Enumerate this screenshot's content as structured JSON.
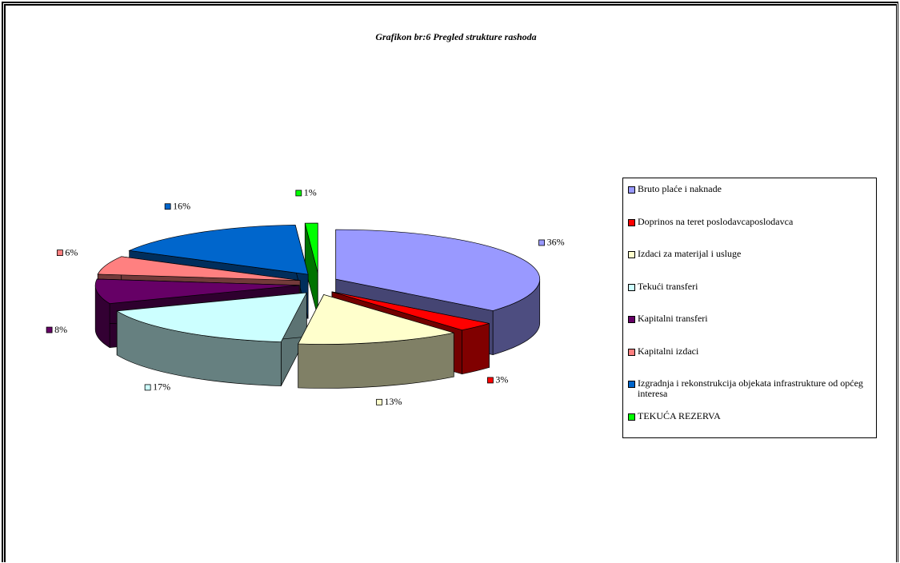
{
  "chart_data": {
    "type": "pie3d",
    "title": "Grafikon br:6 Pregled strukture rashoda",
    "categories": [
      "Bruto plaće i naknade",
      "Doprinos  na teret poslodavcaposlodavca",
      "Izdaci za materijal i usluge",
      "Tekući transferi",
      "Kapitalni transferi",
      "Kapitalni  izdaci",
      "Izgradnja i rekonstrukcija objekata infrastrukture od općeg interesa",
      "TEKUĆA REZERVA"
    ],
    "values": [
      36,
      3,
      13,
      17,
      8,
      6,
      16,
      1
    ],
    "value_labels": [
      "36%",
      "3%",
      "13%",
      "17%",
      "8%",
      "6%",
      "16%",
      "1%"
    ],
    "colors": [
      "#9999ff",
      "#ff0000",
      "#ffffcc",
      "#ccffff",
      "#660066",
      "#ff8080",
      "#0066cc",
      "#00ff00"
    ],
    "legend": "right"
  }
}
